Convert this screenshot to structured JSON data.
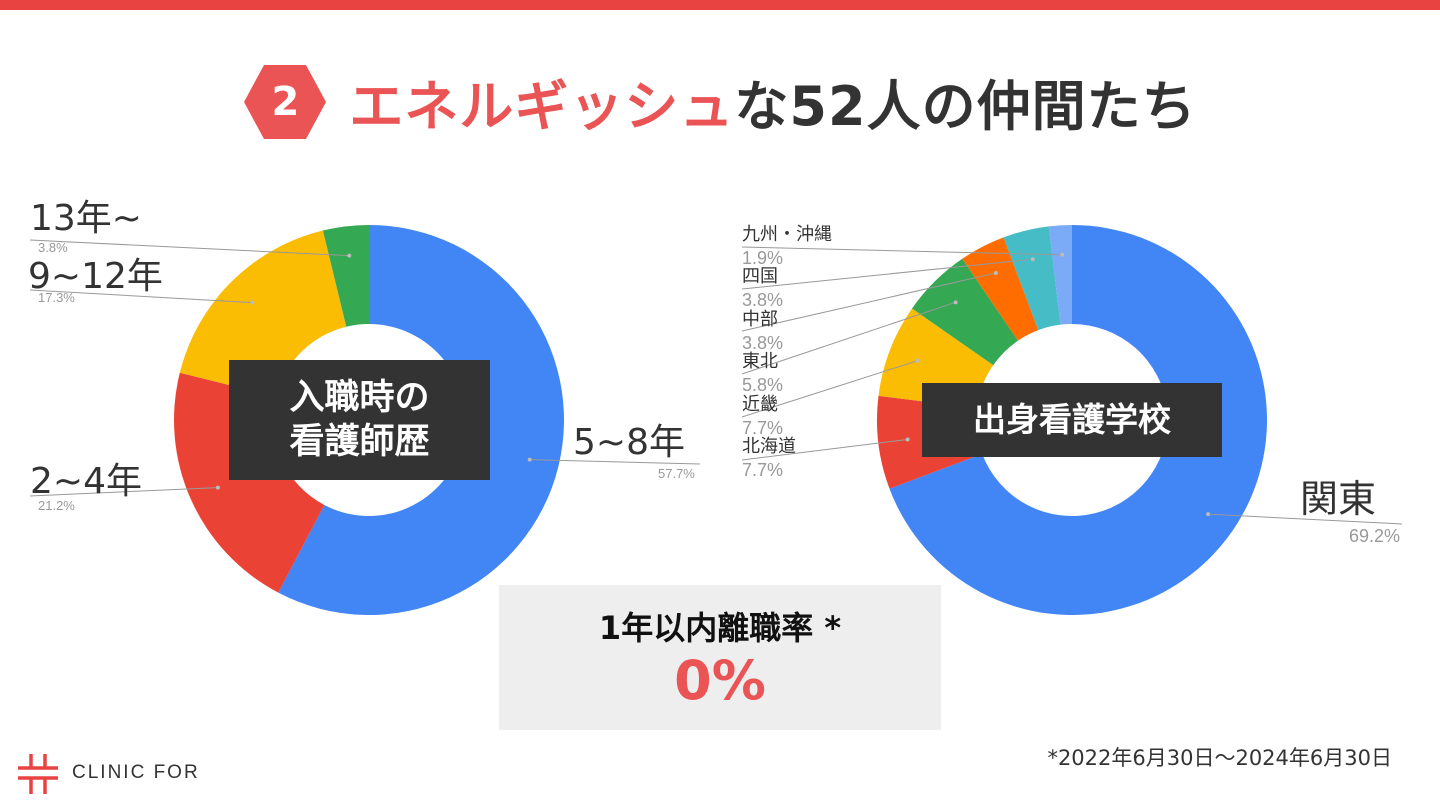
{
  "title": {
    "number": "2",
    "accent": "エネルギッシュ",
    "rest": "な52人の仲間たち"
  },
  "stat": {
    "label": "1年以内離職率 *",
    "value": "0%"
  },
  "logo": {
    "text": "CLINIC FOR"
  },
  "footnote": "*2022年6月30日〜2024年6月30日",
  "colors": {
    "accent": "#ea5454",
    "topbar": "#e84341",
    "blue": "#4285f4",
    "red": "#ea4335",
    "yellow": "#fbbc04",
    "green": "#34a853",
    "orange": "#ff6d01",
    "teal": "#46bdc6",
    "lightblue": "#7baaf7"
  },
  "chart_data": [
    {
      "type": "pie",
      "donut": true,
      "center_label": [
        "入職時の",
        "看護師歴"
      ],
      "slices": [
        {
          "label": "5~8年",
          "percent_label": "57.7%",
          "value": 57.7,
          "color": "#4285f4"
        },
        {
          "label": "2~4年",
          "percent_label": "21.2%",
          "value": 21.2,
          "color": "#ea4335"
        },
        {
          "label": "9~12年",
          "percent_label": "17.3%",
          "value": 17.3,
          "color": "#fbbc04"
        },
        {
          "label": "13年~",
          "percent_label": "3.8%",
          "value": 3.8,
          "color": "#34a853"
        }
      ]
    },
    {
      "type": "pie",
      "donut": true,
      "center_label": [
        "出身看護学校"
      ],
      "slices": [
        {
          "label": "関東",
          "percent_label": "69.2%",
          "value": 69.2,
          "color": "#4285f4"
        },
        {
          "label": "北海道",
          "percent_label": "7.7%",
          "value": 7.7,
          "color": "#ea4335"
        },
        {
          "label": "近畿",
          "percent_label": "7.7%",
          "value": 7.7,
          "color": "#fbbc04"
        },
        {
          "label": "東北",
          "percent_label": "5.8%",
          "value": 5.8,
          "color": "#34a853"
        },
        {
          "label": "中部",
          "percent_label": "3.8%",
          "value": 3.8,
          "color": "#ff6d01"
        },
        {
          "label": "四国",
          "percent_label": "3.8%",
          "value": 3.8,
          "color": "#46bdc6"
        },
        {
          "label": "九州・沖縄",
          "percent_label": "1.9%",
          "value": 1.9,
          "color": "#7baaf7"
        }
      ]
    }
  ]
}
